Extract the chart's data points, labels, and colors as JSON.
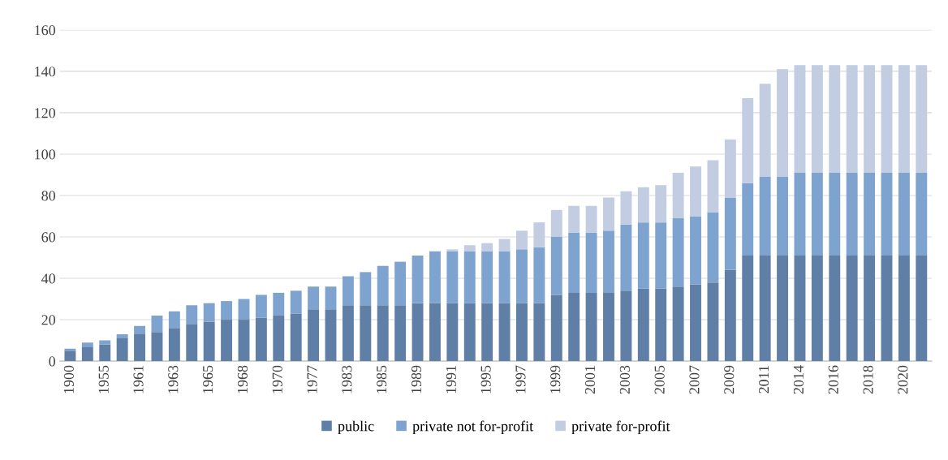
{
  "chart_data": {
    "type": "bar",
    "stacked": true,
    "categories": [
      "1900",
      null,
      "1955",
      null,
      "1961",
      null,
      "1963",
      null,
      "1965",
      null,
      "1968",
      null,
      "1970",
      null,
      "1977",
      null,
      "1983",
      null,
      "1985",
      null,
      "1989",
      null,
      "1991",
      null,
      "1995",
      null,
      "1997",
      null,
      "1999",
      null,
      "2001",
      null,
      "2003",
      null,
      "2005",
      null,
      "2007",
      null,
      "2009",
      null,
      "2011",
      null,
      "2014",
      null,
      "2016",
      null,
      "2018",
      null,
      "2020",
      null
    ],
    "series": [
      {
        "name": "public",
        "color": "#5f7fa6",
        "values": [
          5,
          7,
          8,
          11,
          13,
          14,
          16,
          18,
          19,
          20,
          20,
          21,
          22,
          23,
          25,
          25,
          27,
          27,
          27,
          27,
          28,
          28,
          28,
          28,
          28,
          28,
          28,
          28,
          32,
          33,
          33,
          33,
          34,
          35,
          35,
          36,
          37,
          38,
          44,
          51,
          51,
          51,
          51,
          51,
          51,
          51,
          51,
          51,
          51,
          51
        ]
      },
      {
        "name": "private not for-profit",
        "color": "#7fa3cf",
        "values": [
          1,
          2,
          2,
          2,
          4,
          8,
          8,
          9,
          9,
          9,
          10,
          11,
          11,
          11,
          11,
          11,
          14,
          16,
          19,
          21,
          23,
          25,
          25,
          25,
          25,
          25,
          26,
          27,
          28,
          29,
          29,
          30,
          32,
          32,
          32,
          33,
          33,
          34,
          35,
          35,
          38,
          38,
          40,
          40,
          40,
          40,
          40,
          40,
          40,
          40
        ]
      },
      {
        "name": "private for-profit",
        "color": "#c2cde2",
        "values": [
          0,
          0,
          0,
          0,
          0,
          0,
          0,
          0,
          0,
          0,
          0,
          0,
          0,
          0,
          0,
          0,
          0,
          0,
          0,
          0,
          0,
          0,
          1,
          3,
          4,
          6,
          9,
          12,
          13,
          13,
          13,
          16,
          16,
          17,
          18,
          22,
          24,
          25,
          28,
          41,
          45,
          52,
          52,
          52,
          52,
          52,
          52,
          52,
          52,
          52
        ]
      }
    ],
    "ylim": [
      0,
      160
    ],
    "yticks": [
      0,
      20,
      40,
      60,
      80,
      100,
      120,
      140,
      160
    ],
    "grid": "y",
    "legend": "bottom"
  }
}
